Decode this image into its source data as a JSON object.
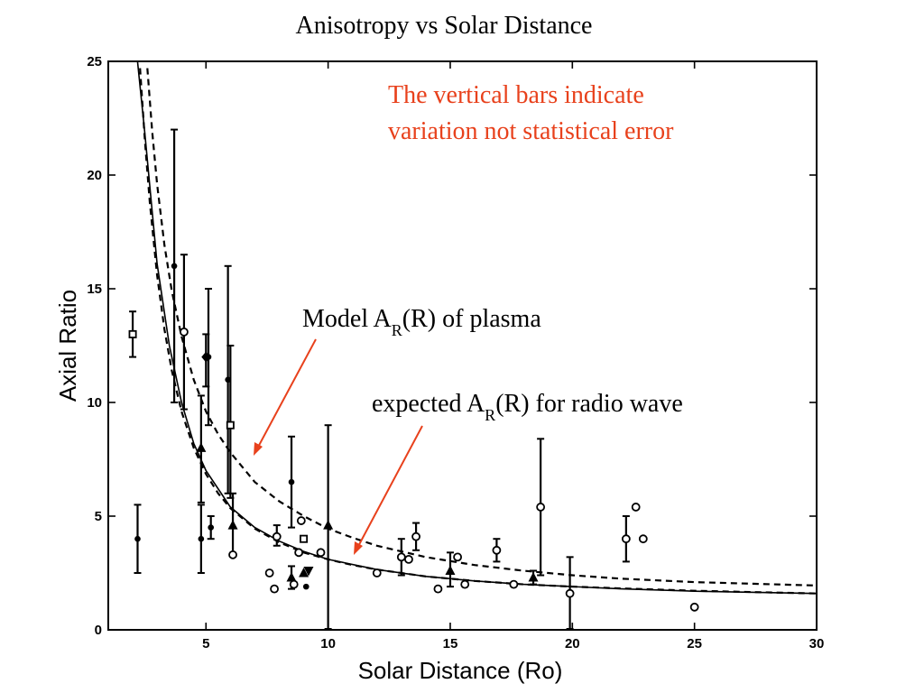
{
  "colors": {
    "annotation": "#e8411c",
    "axis": "#000000",
    "markers": "#000000"
  },
  "chart_data": {
    "type": "scatter",
    "title": "Anisotropy vs Solar Distance",
    "xlabel": "Solar Distance (Ro)",
    "ylabel": "Axial Ratio",
    "xlim": [
      1,
      30
    ],
    "ylim": [
      0,
      25
    ],
    "xticks": [
      5,
      10,
      15,
      20,
      25,
      30
    ],
    "yticks": [
      0,
      5,
      10,
      15,
      20,
      25
    ],
    "grid": false,
    "annotations": [
      {
        "id": "note",
        "lines": [
          "The vertical bars indicate",
          "variation not statistical error"
        ]
      },
      {
        "id": "model",
        "prefix": "Model A",
        "sub": "R",
        "suffix": "(R)  of plasma"
      },
      {
        "id": "expected",
        "prefix": "expected A",
        "sub": "R",
        "suffix": "(R) for radio wave"
      }
    ],
    "curves": [
      {
        "id": "model-plasma",
        "style": "dashed",
        "x": [
          2.6,
          2.8,
          3.0,
          3.3,
          3.6,
          4.0,
          4.5,
          5.0,
          5.5,
          6.0,
          7.0,
          8.0,
          9.0,
          10.0,
          11.0,
          12.0,
          14.0,
          16.0,
          18.0,
          20.0,
          22.0,
          25.0,
          30.0
        ],
        "y": [
          24.7,
          21.9,
          19.6,
          16.9,
          14.9,
          12.9,
          11.0,
          9.6,
          8.6,
          7.8,
          6.5,
          5.65,
          5.0,
          4.45,
          4.05,
          3.7,
          3.2,
          2.85,
          2.6,
          2.4,
          2.25,
          2.1,
          1.95
        ]
      },
      {
        "id": "expected-radio",
        "style": "dashed",
        "x": [
          2.3,
          2.5,
          2.7,
          3.0,
          3.3,
          3.6,
          4.0,
          4.5,
          5.0,
          5.5,
          6.0,
          7.0,
          8.0,
          9.0,
          10.0,
          11.0,
          12.0,
          14.0,
          16.0,
          18.0,
          20.0,
          22.0,
          25.0,
          30.0
        ],
        "y": [
          24.7,
          21.5,
          18.8,
          15.6,
          13.2,
          11.4,
          9.6,
          8.0,
          6.85,
          6.0,
          5.35,
          4.45,
          3.85,
          3.4,
          3.1,
          2.85,
          2.65,
          2.35,
          2.15,
          2.0,
          1.9,
          1.82,
          1.72,
          1.6
        ]
      },
      {
        "id": "expected-radio-solid",
        "style": "solid",
        "x": [
          2.2,
          2.5,
          3.0,
          3.5,
          4.0,
          4.5,
          5.0,
          6.0,
          7.0,
          8.0,
          9.0,
          10.0,
          12.0,
          14.0,
          16.0,
          18.0,
          20.0,
          22.0,
          25.0,
          30.0
        ],
        "y": [
          25,
          21.8,
          16.1,
          12.5,
          10.0,
          8.2,
          7.0,
          5.4,
          4.5,
          3.9,
          3.45,
          3.1,
          2.65,
          2.35,
          2.15,
          2.0,
          1.9,
          1.8,
          1.7,
          1.6
        ]
      }
    ],
    "points": [
      {
        "x": 2.0,
        "y": 13.0,
        "marker": "square",
        "err": [
          12.0,
          14.0
        ]
      },
      {
        "x": 2.2,
        "y": 4.0,
        "marker": "dot",
        "err": [
          2.5,
          5.5
        ]
      },
      {
        "x": 3.7,
        "y": 16.0,
        "marker": "dot",
        "err": [
          10.0,
          22.0
        ]
      },
      {
        "x": 4.1,
        "y": 13.1,
        "marker": "circle",
        "err": [
          9.7,
          16.5
        ]
      },
      {
        "x": 4.8,
        "y": 8.0,
        "marker": "triangle",
        "err": [
          5.6,
          10.3
        ]
      },
      {
        "x": 4.8,
        "y": 4.0,
        "marker": "dot",
        "err": [
          2.5,
          5.5
        ]
      },
      {
        "x": 5.0,
        "y": 12.0,
        "marker": "diamond",
        "err": [
          10.7,
          13.0
        ]
      },
      {
        "x": 5.1,
        "y": 12.0,
        "marker": "dot",
        "err": [
          9.0,
          15.0
        ]
      },
      {
        "x": 5.2,
        "y": 4.5,
        "marker": "dot",
        "err": [
          4.0,
          5.0
        ]
      },
      {
        "x": 5.9,
        "y": 11.0,
        "marker": "dot",
        "err": [
          6.0,
          16.0
        ]
      },
      {
        "x": 6.0,
        "y": 9.0,
        "marker": "square",
        "err": [
          5.8,
          12.5
        ]
      },
      {
        "x": 6.1,
        "y": 4.6,
        "marker": "triangle",
        "err": [
          3.3,
          6.0
        ]
      },
      {
        "x": 6.1,
        "y": 3.3,
        "marker": "circle"
      },
      {
        "x": 7.6,
        "y": 2.5,
        "marker": "circle"
      },
      {
        "x": 7.8,
        "y": 1.8,
        "marker": "circle"
      },
      {
        "x": 7.9,
        "y": 4.1,
        "marker": "circle",
        "err": [
          3.7,
          4.6
        ]
      },
      {
        "x": 8.5,
        "y": 6.5,
        "marker": "dot",
        "err": [
          4.5,
          8.5
        ]
      },
      {
        "x": 8.5,
        "y": 2.3,
        "marker": "triangle",
        "err": [
          1.8,
          2.8
        ]
      },
      {
        "x": 8.6,
        "y": 2.0,
        "marker": "circle"
      },
      {
        "x": 8.8,
        "y": 3.4,
        "marker": "circle"
      },
      {
        "x": 8.9,
        "y": 4.8,
        "marker": "circle"
      },
      {
        "x": 9.0,
        "y": 4.0,
        "marker": "square"
      },
      {
        "x": 9.0,
        "y": 2.5,
        "marker": "triangle"
      },
      {
        "x": 9.1,
        "y": 1.9,
        "marker": "dot"
      },
      {
        "x": 9.2,
        "y": 2.6,
        "marker": "triangle-down"
      },
      {
        "x": 9.7,
        "y": 3.4,
        "marker": "circle"
      },
      {
        "x": 10.0,
        "y": 4.6,
        "marker": "triangle",
        "err": [
          0.0,
          9.0
        ]
      },
      {
        "x": 12.0,
        "y": 2.5,
        "marker": "circle"
      },
      {
        "x": 13.0,
        "y": 3.2,
        "marker": "circle",
        "err": [
          2.4,
          4.0
        ]
      },
      {
        "x": 13.3,
        "y": 3.1,
        "marker": "circle"
      },
      {
        "x": 13.6,
        "y": 4.1,
        "marker": "circle",
        "err": [
          3.5,
          4.7
        ]
      },
      {
        "x": 14.5,
        "y": 1.8,
        "marker": "circle"
      },
      {
        "x": 15.0,
        "y": 2.6,
        "marker": "triangle",
        "err": [
          1.9,
          3.4
        ]
      },
      {
        "x": 15.3,
        "y": 3.2,
        "marker": "circle"
      },
      {
        "x": 15.6,
        "y": 2.0,
        "marker": "circle"
      },
      {
        "x": 16.9,
        "y": 3.5,
        "marker": "circle",
        "err": [
          3.0,
          4.0
        ]
      },
      {
        "x": 17.6,
        "y": 2.0,
        "marker": "circle"
      },
      {
        "x": 18.4,
        "y": 2.3,
        "marker": "triangle",
        "err": [
          2.0,
          2.6
        ]
      },
      {
        "x": 18.7,
        "y": 5.4,
        "marker": "circle",
        "err": [
          2.4,
          8.4
        ]
      },
      {
        "x": 19.9,
        "y": 1.6,
        "marker": "circle",
        "err": [
          0.0,
          3.2
        ]
      },
      {
        "x": 22.2,
        "y": 4.0,
        "marker": "circle",
        "err": [
          3.0,
          5.0
        ]
      },
      {
        "x": 22.6,
        "y": 5.4,
        "marker": "circle"
      },
      {
        "x": 22.9,
        "y": 4.0,
        "marker": "circle"
      },
      {
        "x": 25.0,
        "y": 1.0,
        "marker": "circle"
      }
    ]
  }
}
